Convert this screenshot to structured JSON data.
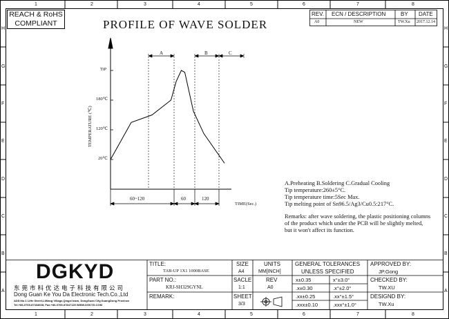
{
  "frame": {
    "col_numbers": [
      "1",
      "2",
      "3",
      "4",
      "5",
      "6",
      "7",
      "8"
    ],
    "row_letters_left": [
      "H",
      "G",
      "F",
      "E",
      "D",
      "C",
      "B",
      "A"
    ],
    "row_letters_right": [
      "H",
      "G",
      "F",
      "E",
      "D",
      "C",
      "B",
      "A"
    ]
  },
  "compliance": {
    "line1": "REACH & RoHS",
    "line2": "COMPLIANT"
  },
  "drawing_title": "PROFILE OF WAVE SOLDER",
  "revision_table": {
    "headers": [
      "REV.",
      "ECN / DESCRIPTION",
      "BY",
      "DATE"
    ],
    "row": [
      "A0",
      "NEW",
      "TW.Xu",
      "2017.12.14"
    ]
  },
  "chart_data": {
    "type": "line",
    "title": "PROFILE OF WAVE SOLDER",
    "xlabel": "TIME(Sec.)",
    "ylabel": "TEMPERATURE (℃)",
    "y_ticks": [
      "TiP",
      "180℃",
      "120℃",
      "20℃"
    ],
    "phases": [
      "A",
      "B",
      "C"
    ],
    "segments": [
      "60~120",
      "60",
      "120"
    ],
    "points_sec_temp": [
      [
        0,
        20
      ],
      [
        60,
        120
      ],
      [
        120,
        140
      ],
      [
        175,
        180
      ],
      [
        190,
        230
      ],
      [
        205,
        260
      ],
      [
        215,
        255
      ],
      [
        240,
        150
      ],
      [
        270,
        90
      ],
      [
        330,
        10
      ]
    ]
  },
  "notes": {
    "legend": "A.Preheating  B.Soldering  C.Gradual Cooling",
    "line1": "Tip temperature:260±5°C.",
    "line2": "Tip temperature time:5Sec Max.",
    "line3": "Tip melting point of Sn96.5/Ag3/Cu0.5:217°C.",
    "remark1": "Remarks: after wave soldering, the plastic positioning columns",
    "remark2": "of the product  which under the PCB will be slightly melted,",
    "remark3": "but it won't affect its function."
  },
  "company": {
    "logo": "DGKYD",
    "name_cn": "东莞市科优达电子科技有限公司",
    "name_en": "Dong Guan Ke You Da Electronic Tech.Co.,Ltd",
    "address": "ADD:No.1 LiHe Street,LiWang Village,Qingxi town, DongGuan City,GuangDong Province",
    "phone": "Tel:+86-0769-87334608; Fax:+86-0769-87847129  WWW.DGKYD.COM"
  },
  "title_block": {
    "title_label": "TITLE:",
    "title_value": "TAB-UP 1X1 1000BASE",
    "part_label": "PART NO.:",
    "part_value": "KRJ-SH329GYNL",
    "remark_label": "REMARK:",
    "size_label": "SIZE",
    "size_value": "A4",
    "units_label": "UNITS",
    "units_value": "MM[INCH]",
    "scale_label": "SACLE",
    "scale_value": "1:1",
    "rev_label": "REV",
    "rev_value": "A0",
    "sheet_label": "SHEET",
    "sheet_value": "3/3",
    "tol_header1": "GENERAL TOLERANCES",
    "tol_header2": "UNLESS SPECIFIED",
    "tol_rows": [
      [
        "x±0.35",
        "x°±3.0°"
      ],
      [
        ".x±0.30",
        ".x°±2.0°"
      ],
      [
        ".xx±0.25",
        ".xx°±1.5°"
      ],
      [
        ".xxx±0.10",
        ".xxx°±1.0°"
      ]
    ],
    "approved_label": "APPROVED BY:",
    "approved_value": "JP.Gong",
    "checked_label": "CHECKED BY:",
    "checked_value": "TW.XU",
    "designed_label": "DESIGND BY:",
    "designed_value": "TW.Xu"
  }
}
